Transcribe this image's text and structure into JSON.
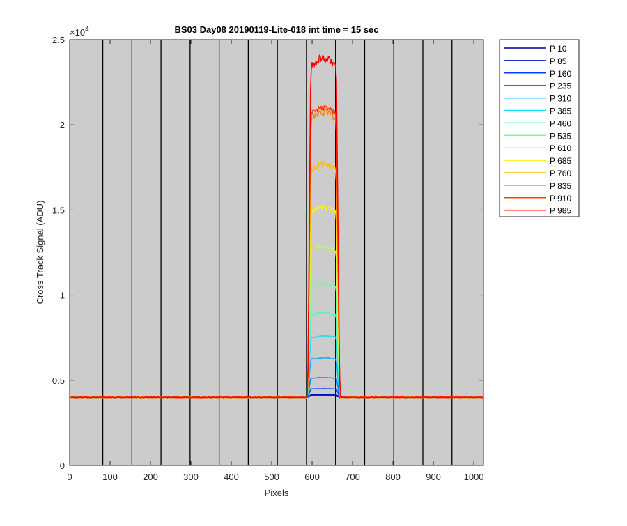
{
  "chart_data": {
    "type": "line",
    "title": "BS03 Day08 20190119-Lite-018 int time = 15 sec",
    "xlabel": "Pixels",
    "ylabel": "Cross Track Signal (ADU)",
    "xlim": [
      0,
      1024
    ],
    "ylim": [
      0,
      25000
    ],
    "x_ticks": [
      0,
      100,
      200,
      300,
      400,
      500,
      600,
      700,
      800,
      900,
      1000
    ],
    "x_tick_labels": [
      "0",
      "100",
      "200",
      "300",
      "400",
      "500",
      "600",
      "700",
      "800",
      "900",
      "1000"
    ],
    "y_ticks": [
      0,
      5000,
      10000,
      15000,
      20000,
      25000
    ],
    "y_tick_labels": [
      "0",
      "0.5",
      "1",
      "1.5",
      "2",
      "2.5"
    ],
    "y_exponent_label": "×10",
    "y_exponent_power": "4",
    "background_color": "#cccccc",
    "grid": false,
    "column_separators_x": [
      82,
      154,
      226,
      298,
      370,
      442,
      514,
      586,
      658,
      730,
      802,
      874,
      946
    ],
    "column_separator_color": "#000000",
    "legend_placement": "outside-top-right",
    "baseline_value": 4000,
    "plateau_range": [
      598,
      658
    ],
    "edge_range": [
      588,
      670
    ],
    "series": [
      {
        "name": "P 10",
        "color": "#00008f",
        "peak": 4080
      },
      {
        "name": "P 85",
        "color": "#0010cf",
        "peak": 4150
      },
      {
        "name": "P 160",
        "color": "#0040ff",
        "peak": 4500
      },
      {
        "name": "P 235",
        "color": "#0080ff",
        "peak": 5150
      },
      {
        "name": "P 310",
        "color": "#00b0ff",
        "peak": 6300
      },
      {
        "name": "P 385",
        "color": "#10e0ef",
        "peak": 7600
      },
      {
        "name": "P 460",
        "color": "#40ffbf",
        "peak": 8950
      },
      {
        "name": "P 535",
        "color": "#70ff8f",
        "peak": 10700
      },
      {
        "name": "P 610",
        "color": "#bfff40",
        "peak": 12850
      },
      {
        "name": "P 685",
        "color": "#ffef10",
        "peak": 15150
      },
      {
        "name": "P 760",
        "color": "#ffbf00",
        "peak": 17700
      },
      {
        "name": "P 835",
        "color": "#ff8000",
        "peak": 20750
      },
      {
        "name": "P 910",
        "color": "#ff4000",
        "peak": 21000
      },
      {
        "name": "P 985",
        "color": "#ff0000",
        "peak": 23900
      }
    ]
  }
}
